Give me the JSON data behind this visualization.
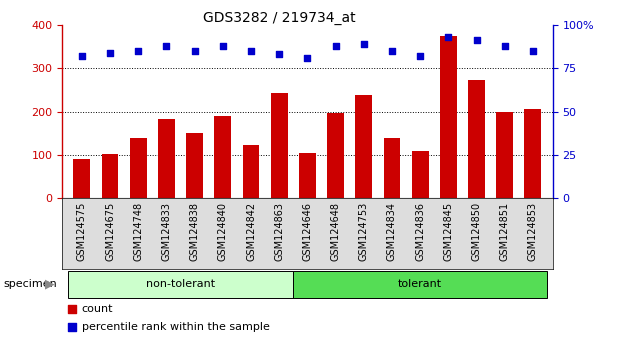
{
  "title": "GDS3282 / 219734_at",
  "categories": [
    "GSM124575",
    "GSM124675",
    "GSM124748",
    "GSM124833",
    "GSM124838",
    "GSM124840",
    "GSM124842",
    "GSM124863",
    "GSM124646",
    "GSM124648",
    "GSM124753",
    "GSM124834",
    "GSM124836",
    "GSM124845",
    "GSM124850",
    "GSM124851",
    "GSM124853"
  ],
  "counts": [
    90,
    103,
    140,
    183,
    150,
    190,
    122,
    243,
    105,
    197,
    238,
    138,
    110,
    375,
    272,
    198,
    205
  ],
  "percentile_ranks": [
    82,
    84,
    85,
    88,
    85,
    88,
    85,
    83,
    81,
    88,
    89,
    85,
    82,
    93,
    91,
    88,
    85
  ],
  "groups": [
    "non-tolerant",
    "non-tolerant",
    "non-tolerant",
    "non-tolerant",
    "non-tolerant",
    "non-tolerant",
    "non-tolerant",
    "non-tolerant",
    "tolerant",
    "tolerant",
    "tolerant",
    "tolerant",
    "tolerant",
    "tolerant",
    "tolerant",
    "tolerant",
    "tolerant"
  ],
  "bar_color": "#cc0000",
  "dot_color": "#0000cc",
  "ylim_left": [
    0,
    400
  ],
  "ylim_right": [
    0,
    100
  ],
  "yticks_left": [
    0,
    100,
    200,
    300,
    400
  ],
  "yticks_right": [
    0,
    25,
    50,
    75,
    100
  ],
  "ytick_labels_right": [
    "0",
    "25",
    "50",
    "75",
    "100%"
  ],
  "grid_values": [
    100,
    200,
    300
  ],
  "group_colors": {
    "non-tolerant": "#ccffcc",
    "tolerant": "#55dd55"
  },
  "specimen_label": "specimen",
  "legend_count_label": "count",
  "legend_pct_label": "percentile rank within the sample",
  "bar_color_legend": "#cc0000",
  "dot_color_legend": "#0000cc",
  "axis_color_left": "#cc0000",
  "axis_color_right": "#0000cc",
  "tick_label_bg": "#dddddd",
  "plot_bg": "#ffffff"
}
